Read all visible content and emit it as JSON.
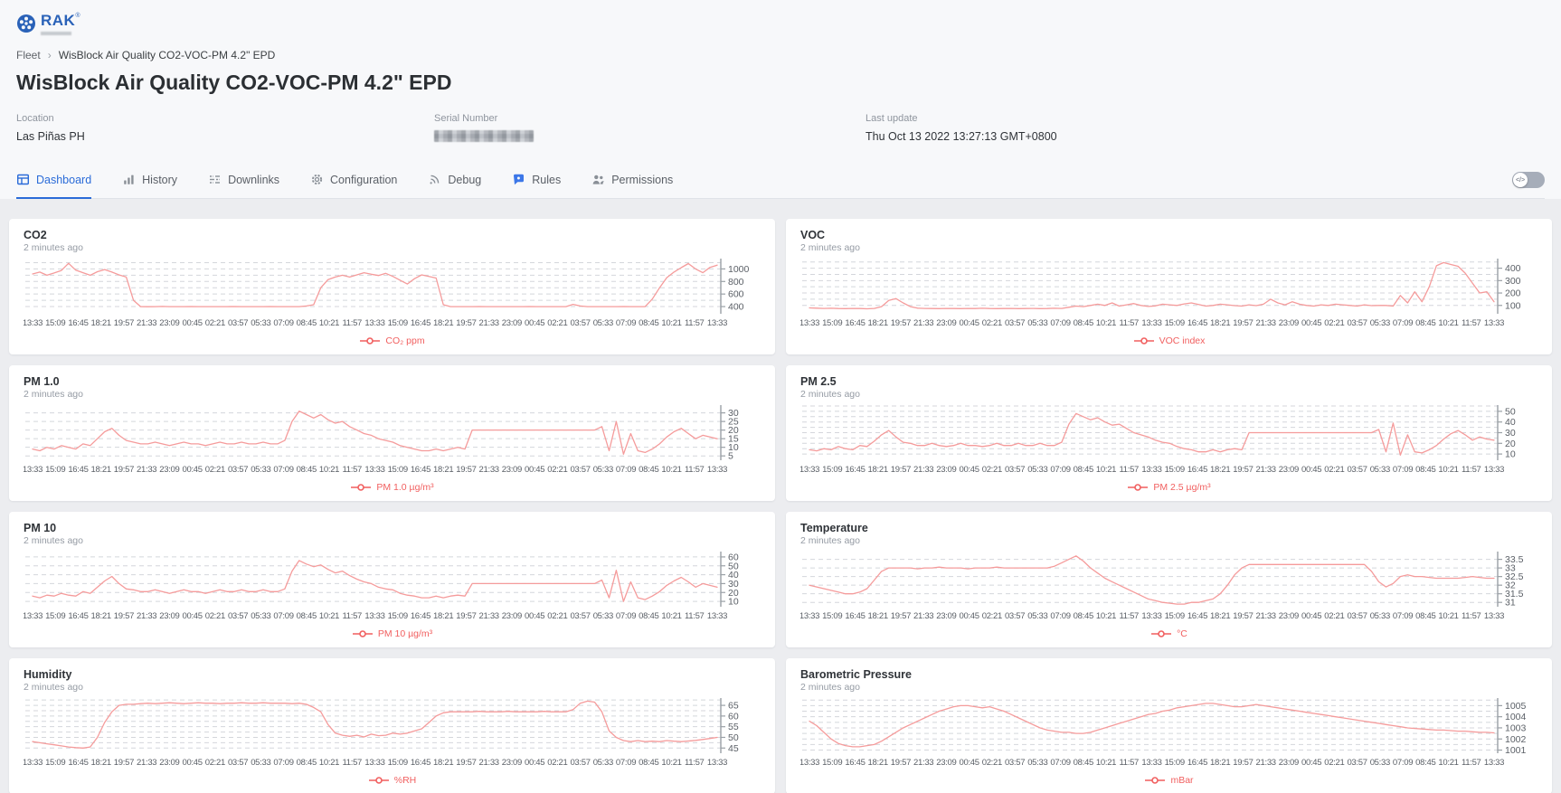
{
  "brand": {
    "name": "RAK",
    "registered": "®"
  },
  "breadcrumb": {
    "items": [
      "Fleet",
      "WisBlock Air Quality CO2-VOC-PM 4.2\" EPD"
    ],
    "separator": "›"
  },
  "header": {
    "title": "WisBlock Air Quality CO2-VOC-PM 4.2\" EPD",
    "location_label": "Location",
    "location_value": "Las Piñas PH",
    "serial_label": "Serial Number",
    "serial_redacted": true,
    "last_update_label": "Last update",
    "last_update_value": "Thu Oct 13 2022 13:27:13 GMT+0800"
  },
  "tabs": [
    {
      "label": "Dashboard",
      "icon": "dashboard-grid",
      "active": true
    },
    {
      "label": "History",
      "icon": "bar-chart",
      "active": false
    },
    {
      "label": "Downlinks",
      "icon": "sliders",
      "active": false
    },
    {
      "label": "Configuration",
      "icon": "gear",
      "active": false
    },
    {
      "label": "Debug",
      "icon": "broadcast",
      "active": false
    },
    {
      "label": "Rules",
      "icon": "chat-bubble",
      "active": false
    },
    {
      "label": "Permissions",
      "icon": "people",
      "active": false
    }
  ],
  "controls": {
    "code_toggle_state": "off",
    "code_toggle_icon": "</>"
  },
  "chart_defaults": {
    "line_color": "#f59b9b",
    "legend_color": "#f15f5f",
    "grid": "dashed-horizontal",
    "legend_position": "bottom",
    "y_axis_side": "right"
  },
  "chart_data": [
    {
      "type": "line",
      "title": "CO2",
      "updated": "2 minutes ago",
      "legend": "CO₂ ppm",
      "y_ticks": [
        400,
        600,
        800,
        1000
      ],
      "ylim": [
        300,
        1150
      ],
      "x_ticks": [
        "13:33",
        "15:09",
        "16:45",
        "18:21",
        "19:57",
        "21:33",
        "23:09",
        "00:45",
        "02:21",
        "03:57",
        "05:33",
        "07:09",
        "08:45",
        "10:21",
        "11:57",
        "13:33",
        "15:09",
        "16:45",
        "18:21",
        "19:57",
        "21:33",
        "23:09",
        "00:45",
        "02:21",
        "03:57",
        "05:33",
        "07:09",
        "08:45",
        "10:21",
        "11:57",
        "13:33"
      ],
      "values": [
        920,
        950,
        900,
        935,
        975,
        1090,
        980,
        940,
        900,
        955,
        990,
        950,
        905,
        870,
        500,
        400,
        398,
        400,
        402,
        400,
        399,
        400,
        401,
        400,
        400,
        399,
        400,
        400,
        401,
        400,
        400,
        399,
        400,
        401,
        400,
        400,
        400,
        399,
        410,
        430,
        700,
        830,
        870,
        900,
        870,
        905,
        940,
        915,
        895,
        930,
        880,
        820,
        760,
        845,
        905,
        880,
        855,
        430,
        400,
        400,
        399,
        400,
        401,
        400,
        400,
        399,
        400,
        400,
        400,
        401,
        400,
        399,
        400,
        400,
        400,
        435,
        410,
        400,
        400,
        399,
        400,
        400,
        401,
        400,
        400,
        400,
        520,
        700,
        860,
        950,
        1020,
        1085,
        1000,
        940,
        1025,
        1060
      ]
    },
    {
      "type": "line",
      "title": "VOC",
      "updated": "2 minutes ago",
      "legend": "VOC index",
      "y_ticks": [
        100,
        200,
        300,
        400
      ],
      "ylim": [
        40,
        470
      ],
      "x_ticks": [
        "13:33",
        "15:09",
        "16:45",
        "18:21",
        "19:57",
        "21:33",
        "23:09",
        "00:45",
        "02:21",
        "03:57",
        "05:33",
        "07:09",
        "08:45",
        "10:21",
        "11:57",
        "13:33",
        "15:09",
        "16:45",
        "18:21",
        "19:57",
        "21:33",
        "23:09",
        "00:45",
        "02:21",
        "03:57",
        "05:33",
        "07:09",
        "08:45",
        "10:21",
        "11:57",
        "13:33"
      ],
      "values": [
        80,
        78,
        76,
        77,
        75,
        74,
        76,
        75,
        73,
        76,
        90,
        140,
        155,
        120,
        90,
        78,
        76,
        75,
        74,
        76,
        75,
        74,
        76,
        75,
        77,
        75,
        74,
        75,
        76,
        74,
        75,
        76,
        74,
        75,
        77,
        76,
        85,
        95,
        90,
        100,
        110,
        100,
        120,
        95,
        105,
        115,
        100,
        92,
        96,
        110,
        105,
        100,
        112,
        120,
        108,
        95,
        100,
        110,
        105,
        98,
        95,
        105,
        98,
        110,
        150,
        120,
        105,
        130,
        110,
        100,
        95,
        105,
        100,
        110,
        105,
        100,
        95,
        105,
        98,
        100,
        100,
        95,
        180,
        120,
        210,
        130,
        250,
        420,
        445,
        430,
        415,
        360,
        280,
        200,
        210,
        130
      ]
    },
    {
      "type": "line",
      "title": "PM 1.0",
      "updated": "2 minutes ago",
      "legend": "PM 1.0 µg/m³",
      "y_ticks": [
        5,
        10,
        15,
        20,
        25,
        30
      ],
      "ylim": [
        3,
        34
      ],
      "x_ticks": [
        "13:33",
        "15:09",
        "16:45",
        "18:21",
        "19:57",
        "21:33",
        "23:09",
        "00:45",
        "02:21",
        "03:57",
        "05:33",
        "07:09",
        "08:45",
        "10:21",
        "11:57",
        "13:33",
        "15:09",
        "16:45",
        "18:21",
        "19:57",
        "21:33",
        "23:09",
        "00:45",
        "02:21",
        "03:57",
        "05:33",
        "07:09",
        "08:45",
        "10:21",
        "11:57",
        "13:33"
      ],
      "values": [
        9,
        8,
        10,
        9,
        11,
        10,
        9,
        12,
        11,
        15,
        19,
        21,
        17,
        14,
        13,
        12,
        12,
        13,
        12,
        11,
        12,
        13,
        12,
        12,
        11,
        12,
        13,
        12,
        12,
        13,
        12,
        12,
        13,
        12,
        12,
        14,
        25,
        31,
        29,
        27,
        29,
        26,
        24,
        25,
        22,
        20,
        18,
        17,
        15,
        14,
        13,
        11,
        10,
        9,
        8,
        8,
        9,
        8,
        9,
        10,
        9,
        20,
        20,
        20,
        20,
        20,
        20,
        20,
        20,
        20,
        20,
        20,
        20,
        20,
        20,
        20,
        20,
        20,
        20,
        22,
        8,
        25,
        6,
        18,
        8,
        7,
        9,
        12,
        16,
        19,
        21,
        18,
        15,
        17,
        16,
        15
      ]
    },
    {
      "type": "line",
      "title": "PM 2.5",
      "updated": "2 minutes ago",
      "legend": "PM 2.5 µg/m³",
      "y_ticks": [
        10,
        20,
        30,
        40,
        50
      ],
      "ylim": [
        5,
        55
      ],
      "x_ticks": [
        "13:33",
        "15:09",
        "16:45",
        "18:21",
        "19:57",
        "21:33",
        "23:09",
        "00:45",
        "02:21",
        "03:57",
        "05:33",
        "07:09",
        "08:45",
        "10:21",
        "11:57",
        "13:33",
        "15:09",
        "16:45",
        "18:21",
        "19:57",
        "21:33",
        "23:09",
        "00:45",
        "02:21",
        "03:57",
        "05:33",
        "07:09",
        "08:45",
        "10:21",
        "11:57",
        "13:33"
      ],
      "values": [
        14,
        13,
        15,
        14,
        17,
        15,
        14,
        18,
        17,
        22,
        28,
        32,
        26,
        21,
        20,
        18,
        18,
        20,
        18,
        17,
        18,
        20,
        18,
        18,
        17,
        18,
        20,
        18,
        18,
        20,
        18,
        18,
        20,
        18,
        18,
        21,
        38,
        48,
        45,
        42,
        44,
        40,
        37,
        38,
        34,
        30,
        28,
        26,
        23,
        21,
        20,
        17,
        15,
        14,
        12,
        12,
        14,
        12,
        14,
        15,
        14,
        30,
        30,
        30,
        30,
        30,
        30,
        30,
        30,
        30,
        30,
        30,
        30,
        30,
        30,
        30,
        30,
        30,
        30,
        33,
        12,
        39,
        9,
        28,
        12,
        11,
        14,
        18,
        24,
        29,
        32,
        28,
        23,
        26,
        24,
        23
      ]
    },
    {
      "type": "line",
      "title": "PM 10",
      "updated": "2 minutes ago",
      "legend": "PM 10 µg/m³",
      "y_ticks": [
        10,
        20,
        30,
        40,
        50,
        60
      ],
      "ylim": [
        5,
        65
      ],
      "x_ticks": [
        "13:33",
        "15:09",
        "16:45",
        "18:21",
        "19:57",
        "21:33",
        "23:09",
        "00:45",
        "02:21",
        "03:57",
        "05:33",
        "07:09",
        "08:45",
        "10:21",
        "11:57",
        "13:33",
        "15:09",
        "16:45",
        "18:21",
        "19:57",
        "21:33",
        "23:09",
        "00:45",
        "02:21",
        "03:57",
        "05:33",
        "07:09",
        "08:45",
        "10:21",
        "11:57",
        "13:33"
      ],
      "values": [
        16,
        14,
        17,
        16,
        19,
        17,
        16,
        21,
        19,
        26,
        33,
        38,
        30,
        24,
        23,
        21,
        21,
        23,
        21,
        19,
        21,
        23,
        21,
        21,
        19,
        21,
        23,
        21,
        21,
        23,
        21,
        21,
        23,
        21,
        21,
        24,
        44,
        56,
        52,
        49,
        51,
        46,
        42,
        44,
        39,
        35,
        32,
        30,
        26,
        24,
        23,
        19,
        17,
        16,
        14,
        14,
        16,
        14,
        16,
        17,
        16,
        30,
        30,
        30,
        30,
        30,
        30,
        30,
        30,
        30,
        30,
        30,
        30,
        30,
        30,
        30,
        30,
        30,
        30,
        34,
        14,
        45,
        10,
        32,
        14,
        12,
        16,
        21,
        28,
        33,
        37,
        32,
        26,
        30,
        28,
        26
      ]
    },
    {
      "type": "line",
      "title": "Temperature",
      "updated": "2 minutes ago",
      "legend": "°C",
      "y_ticks": [
        31,
        31.5,
        32,
        32.5,
        33,
        33.5
      ],
      "ylim": [
        30.8,
        33.9
      ],
      "x_ticks": [
        "13:33",
        "15:09",
        "16:45",
        "18:21",
        "19:57",
        "21:33",
        "23:09",
        "00:45",
        "02:21",
        "03:57",
        "05:33",
        "07:09",
        "08:45",
        "10:21",
        "11:57",
        "13:33",
        "15:09",
        "16:45",
        "18:21",
        "19:57",
        "21:33",
        "23:09",
        "00:45",
        "02:21",
        "03:57",
        "05:33",
        "07:09",
        "08:45",
        "10:21",
        "11:57",
        "13:33"
      ],
      "values": [
        32.0,
        31.9,
        31.8,
        31.7,
        31.6,
        31.5,
        31.5,
        31.6,
        31.8,
        32.3,
        32.8,
        33.0,
        33.0,
        33.0,
        33.0,
        32.95,
        33.0,
        33.0,
        33.05,
        33.0,
        33.0,
        33.0,
        32.95,
        33.0,
        33.0,
        33.0,
        33.05,
        33.0,
        33.0,
        33.0,
        33.0,
        33.0,
        33.0,
        33.0,
        33.1,
        33.3,
        33.5,
        33.7,
        33.4,
        33.0,
        32.7,
        32.4,
        32.2,
        32.0,
        31.8,
        31.6,
        31.4,
        31.2,
        31.1,
        31.0,
        30.95,
        30.9,
        30.9,
        31.0,
        31.0,
        31.1,
        31.2,
        31.5,
        32.0,
        32.6,
        33.0,
        33.2,
        33.2,
        33.2,
        33.2,
        33.2,
        33.2,
        33.2,
        33.2,
        33.2,
        33.2,
        33.2,
        33.2,
        33.2,
        33.2,
        33.2,
        33.2,
        33.2,
        32.8,
        32.2,
        31.9,
        32.1,
        32.5,
        32.6,
        32.5,
        32.5,
        32.45,
        32.4,
        32.4,
        32.4,
        32.4,
        32.45,
        32.5,
        32.45,
        32.4,
        32.4
      ]
    },
    {
      "type": "line",
      "title": "Humidity",
      "updated": "2 minutes ago",
      "legend": "%RH",
      "y_ticks": [
        45,
        50,
        55,
        60,
        65
      ],
      "ylim": [
        43,
        68
      ],
      "x_ticks": [
        "13:33",
        "15:09",
        "16:45",
        "18:21",
        "19:57",
        "21:33",
        "23:09",
        "00:45",
        "02:21",
        "03:57",
        "05:33",
        "07:09",
        "08:45",
        "10:21",
        "11:57",
        "13:33",
        "15:09",
        "16:45",
        "18:21",
        "19:57",
        "21:33",
        "23:09",
        "00:45",
        "02:21",
        "03:57",
        "05:33",
        "07:09",
        "08:45",
        "10:21",
        "11:57",
        "13:33"
      ],
      "values": [
        48,
        47.5,
        47,
        46.5,
        46,
        45.5,
        45.2,
        45,
        45.5,
        50,
        57,
        62,
        65,
        65.5,
        65.5,
        65.8,
        66,
        65.8,
        66,
        66.2,
        66,
        65.8,
        66,
        66.2,
        66,
        66,
        65.8,
        66,
        66,
        66.2,
        66,
        66,
        66.2,
        66,
        66,
        66,
        65.8,
        66,
        65.5,
        64,
        62,
        56,
        52,
        51,
        50.5,
        51,
        50.2,
        51.5,
        50.8,
        51,
        52,
        51.5,
        52,
        53,
        54,
        57,
        60,
        61.5,
        62,
        62,
        62,
        62,
        62.2,
        62,
        62,
        62,
        62.2,
        62,
        62,
        62,
        62,
        62.2,
        62,
        62,
        62,
        63,
        66,
        67,
        66.5,
        62,
        53,
        50,
        48.5,
        48,
        48.5,
        48,
        48.2,
        48,
        48.5,
        48.2,
        48,
        48.3,
        48.6,
        49,
        49.5,
        50
      ]
    },
    {
      "type": "line",
      "title": "Barometric Pressure",
      "updated": "2 minutes ago",
      "legend": "mBar",
      "y_ticks": [
        1001,
        1002,
        1003,
        1004,
        1005
      ],
      "ylim": [
        1000.8,
        1005.6
      ],
      "x_ticks": [
        "13:33",
        "15:09",
        "16:45",
        "18:21",
        "19:57",
        "21:33",
        "23:09",
        "00:45",
        "02:21",
        "03:57",
        "05:33",
        "07:09",
        "08:45",
        "10:21",
        "11:57",
        "13:33",
        "15:09",
        "16:45",
        "18:21",
        "19:57",
        "21:33",
        "23:09",
        "00:45",
        "02:21",
        "03:57",
        "05:33",
        "07:09",
        "08:45",
        "10:21",
        "11:57",
        "13:33"
      ],
      "values": [
        1003.6,
        1003.2,
        1002.6,
        1002.0,
        1001.6,
        1001.4,
        1001.3,
        1001.3,
        1001.4,
        1001.5,
        1001.8,
        1002.2,
        1002.6,
        1003.0,
        1003.3,
        1003.6,
        1003.9,
        1004.2,
        1004.5,
        1004.7,
        1004.9,
        1005.0,
        1005.0,
        1004.9,
        1004.8,
        1004.9,
        1004.7,
        1004.5,
        1004.2,
        1003.9,
        1003.6,
        1003.3,
        1003.0,
        1002.8,
        1002.7,
        1002.6,
        1002.6,
        1002.5,
        1002.5,
        1002.6,
        1002.8,
        1003.0,
        1003.2,
        1003.4,
        1003.6,
        1003.8,
        1004.0,
        1004.2,
        1004.3,
        1004.5,
        1004.6,
        1004.8,
        1004.9,
        1005.0,
        1005.1,
        1005.2,
        1005.2,
        1005.1,
        1005.0,
        1004.9,
        1004.9,
        1005.0,
        1005.1,
        1005.0,
        1004.9,
        1004.8,
        1004.7,
        1004.6,
        1004.5,
        1004.4,
        1004.3,
        1004.2,
        1004.1,
        1004.0,
        1003.9,
        1003.8,
        1003.7,
        1003.6,
        1003.5,
        1003.4,
        1003.3,
        1003.2,
        1003.1,
        1003.0,
        1002.95,
        1002.9,
        1002.85,
        1002.8,
        1002.8,
        1002.75,
        1002.7,
        1002.7,
        1002.65,
        1002.6,
        1002.6,
        1002.55
      ]
    }
  ]
}
